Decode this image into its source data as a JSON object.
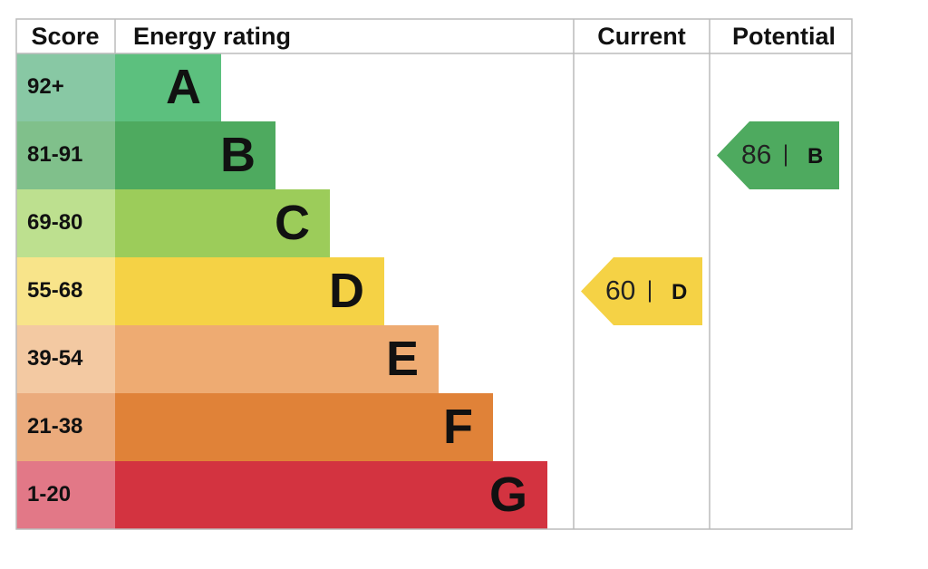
{
  "header": {
    "score": "Score",
    "energy_rating": "Energy rating",
    "current": "Current",
    "potential": "Potential"
  },
  "bands": [
    {
      "score": "92+",
      "rating": "A",
      "color": "#5cc07e",
      "score_color": "#88c8a4"
    },
    {
      "score": "81-91",
      "rating": "B",
      "color": "#4eaa5f",
      "score_color": "#80c08b"
    },
    {
      "score": "69-80",
      "rating": "C",
      "color": "#9ccc5a",
      "score_color": "#bde08f"
    },
    {
      "score": "55-68",
      "rating": "D",
      "color": "#f5d245",
      "score_color": "#f8e48a"
    },
    {
      "score": "39-54",
      "rating": "E",
      "color": "#eeab72",
      "score_color": "#f3c9a2"
    },
    {
      "score": "21-38",
      "rating": "F",
      "color": "#e08238",
      "score_color": "#ebab7c"
    },
    {
      "score": "1-20",
      "rating": "G",
      "color": "#d33340",
      "score_color": "#e27887"
    }
  ],
  "current": {
    "score": 60,
    "rating": "D"
  },
  "potential": {
    "score": 86,
    "rating": "B"
  }
}
